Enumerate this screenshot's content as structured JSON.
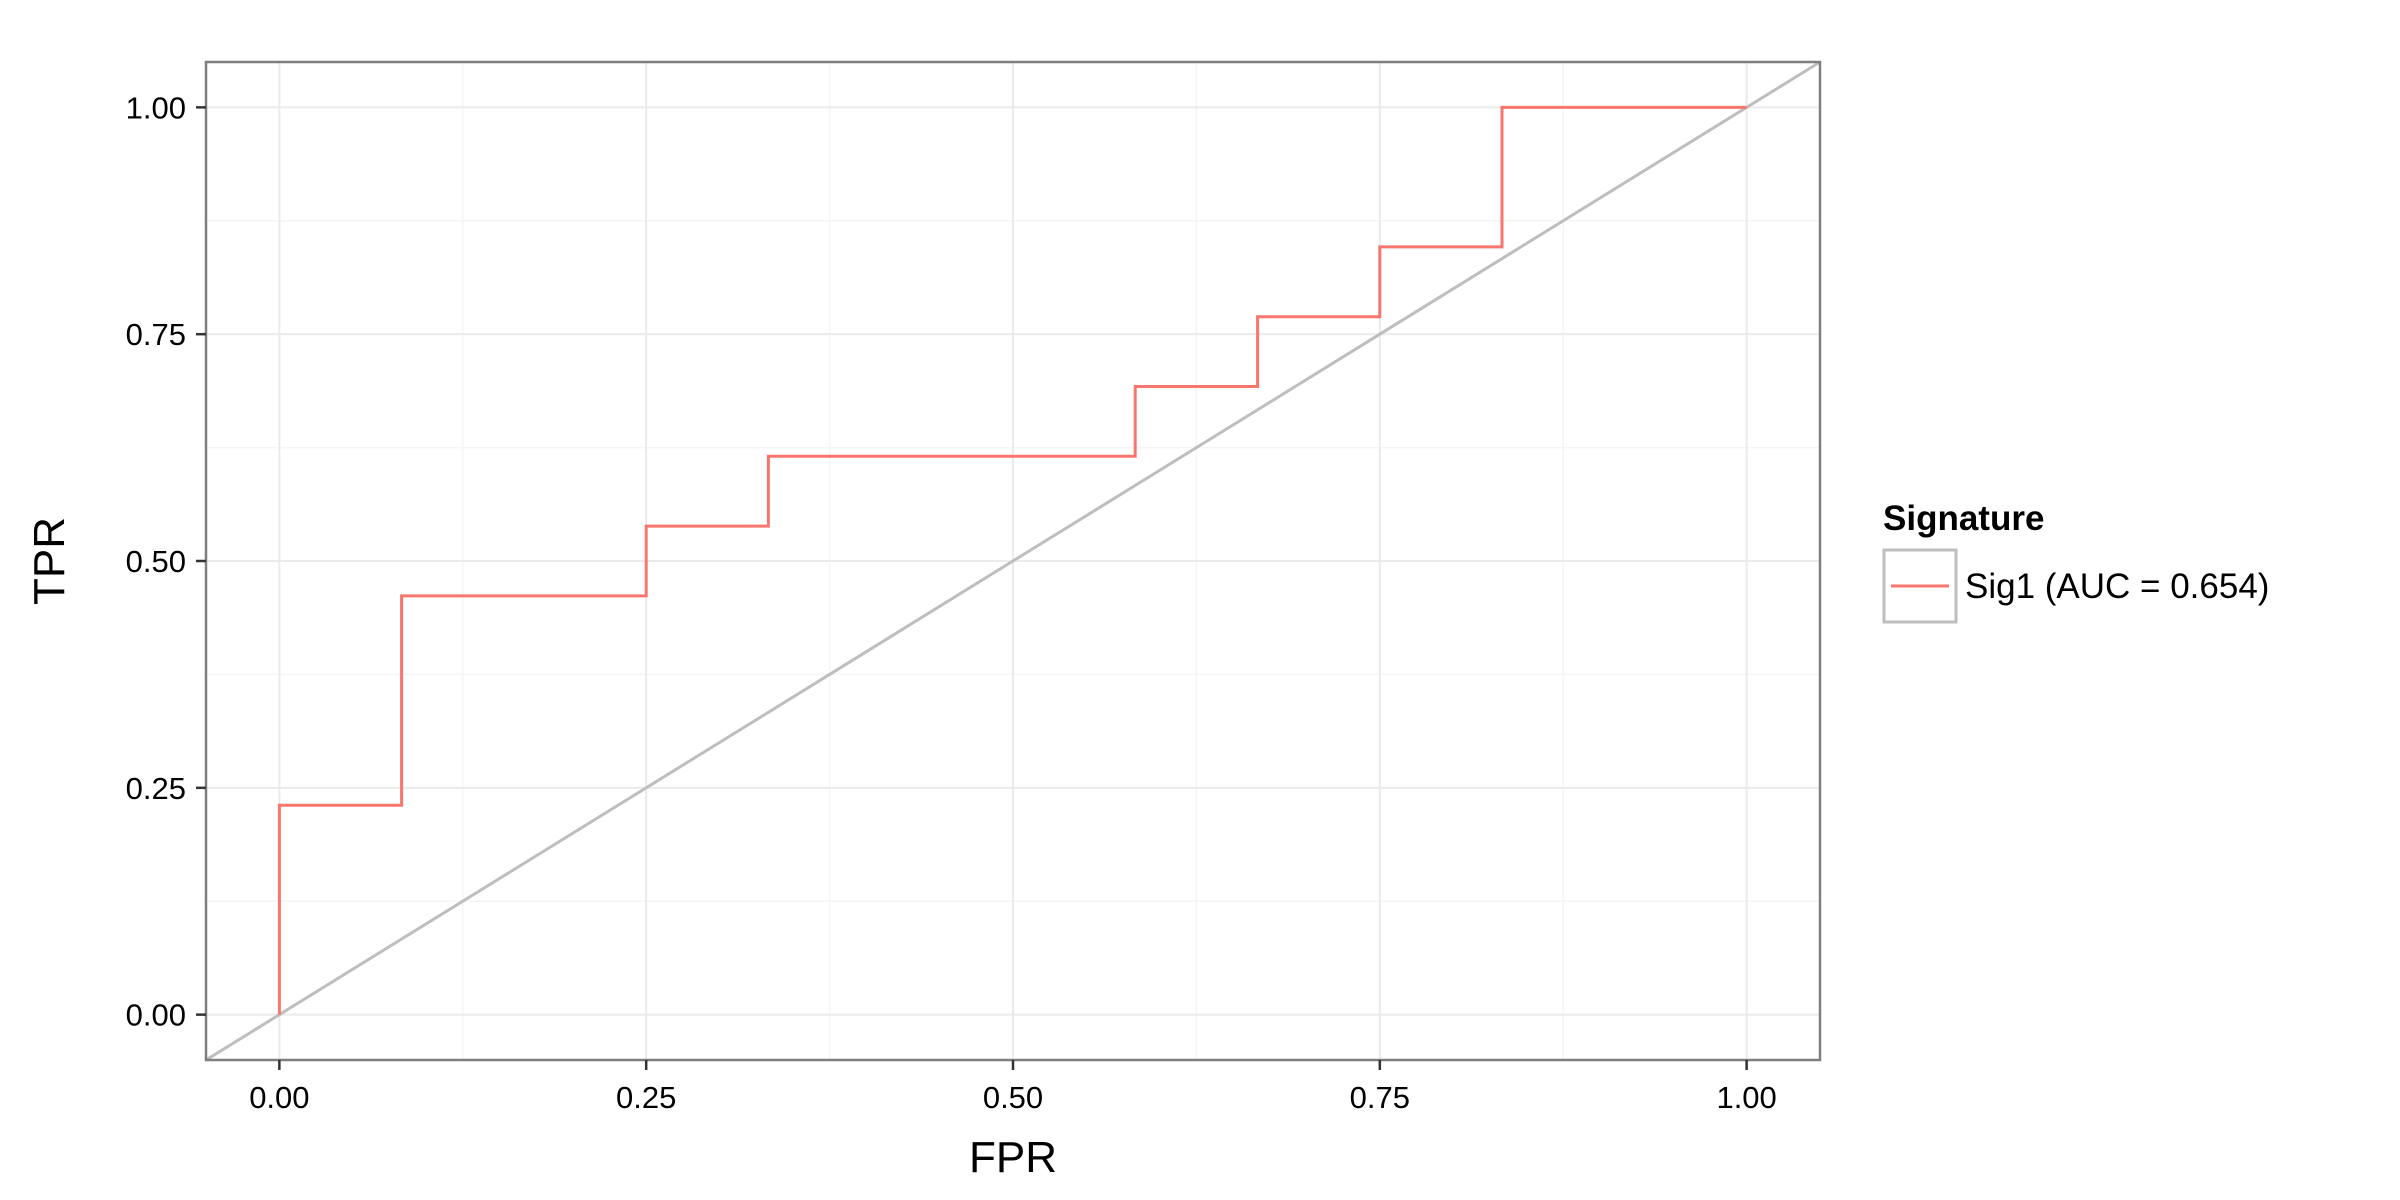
{
  "chart_data": {
    "type": "line",
    "title": "",
    "xlabel": "FPR",
    "ylabel": "TPR",
    "xlim": [
      -0.05,
      1.05
    ],
    "ylim": [
      -0.05,
      1.05
    ],
    "x_ticks": [
      0,
      0.25,
      0.5,
      0.75,
      1
    ],
    "x_tick_labels": [
      "0.00",
      "0.25",
      "0.50",
      "0.75",
      "1.00"
    ],
    "y_ticks": [
      0,
      0.25,
      0.5,
      0.75,
      1
    ],
    "y_tick_labels": [
      "0.00",
      "0.25",
      "0.50",
      "0.75",
      "1.00"
    ],
    "grid": true,
    "legend": {
      "title": "Signature",
      "placement": "right",
      "entries": [
        {
          "label": "Sig1 (AUC = 0.654)",
          "color": "#F8766D"
        }
      ]
    },
    "series": [
      {
        "name": "Sig1 (AUC = 0.654)",
        "color": "#F8766D",
        "step": true,
        "x": [
          0,
          0,
          0.0833,
          0.0833,
          0.25,
          0.25,
          0.3333,
          0.3333,
          0.5833,
          0.5833,
          0.6667,
          0.6667,
          0.75,
          0.75,
          0.8333,
          0.8333,
          1
        ],
        "y": [
          0,
          0.2308,
          0.2308,
          0.4615,
          0.4615,
          0.5385,
          0.5385,
          0.6154,
          0.6154,
          0.6923,
          0.6923,
          0.7692,
          0.7692,
          0.8462,
          0.8462,
          1,
          1
        ]
      }
    ],
    "reference_line": {
      "color": "#BEBEBE",
      "slope": 1,
      "intercept": 0
    },
    "colors": {
      "panel_border": "#7F7F7F",
      "grid_major": "#EBEBEB",
      "grid_minor": "#F5F5F5"
    }
  }
}
